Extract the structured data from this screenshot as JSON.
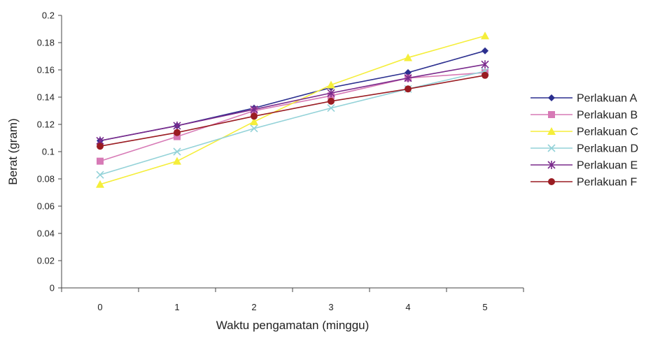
{
  "chart_data": {
    "type": "line",
    "title": "",
    "xlabel": "Waktu pengamatan (minggu)",
    "ylabel": "Berat (gram)",
    "categories": [
      "0",
      "1",
      "2",
      "3",
      "4",
      "5"
    ],
    "ylim": [
      0,
      0.2
    ],
    "y_ticks": [
      0,
      0.02,
      0.04,
      0.06,
      0.08,
      0.1,
      0.12,
      0.14,
      0.16,
      0.18,
      0.2
    ],
    "y_tick_labels": [
      "0",
      "0.02",
      "0.04",
      "0.06",
      "0.08",
      "0.1",
      "0.12",
      "0.14",
      "0.16",
      "0.18",
      "0.2"
    ],
    "grid": false,
    "legend_position": "right",
    "series": [
      {
        "name": "Perlakuan A",
        "color": "#2b2f8f",
        "marker": "diamond",
        "values": [
          0.108,
          0.119,
          0.132,
          0.147,
          0.158,
          0.174
        ]
      },
      {
        "name": "Perlakuan B",
        "color": "#d77ab6",
        "marker": "square",
        "values": [
          0.093,
          0.111,
          0.13,
          0.141,
          0.154,
          0.158
        ]
      },
      {
        "name": "Perlakuan C",
        "color": "#f5ee3a",
        "marker": "triangle",
        "values": [
          0.076,
          0.093,
          0.122,
          0.149,
          0.169,
          0.185
        ]
      },
      {
        "name": "Perlakuan D",
        "color": "#93d2d8",
        "marker": "x",
        "values": [
          0.083,
          0.1,
          0.117,
          0.132,
          0.146,
          0.159
        ]
      },
      {
        "name": "Perlakuan E",
        "color": "#7a2a8c",
        "marker": "star",
        "values": [
          0.108,
          0.119,
          0.131,
          0.143,
          0.154,
          0.164
        ]
      },
      {
        "name": "Perlakuan F",
        "color": "#9a1c22",
        "marker": "circle",
        "values": [
          0.104,
          0.114,
          0.126,
          0.137,
          0.146,
          0.156
        ]
      }
    ]
  }
}
